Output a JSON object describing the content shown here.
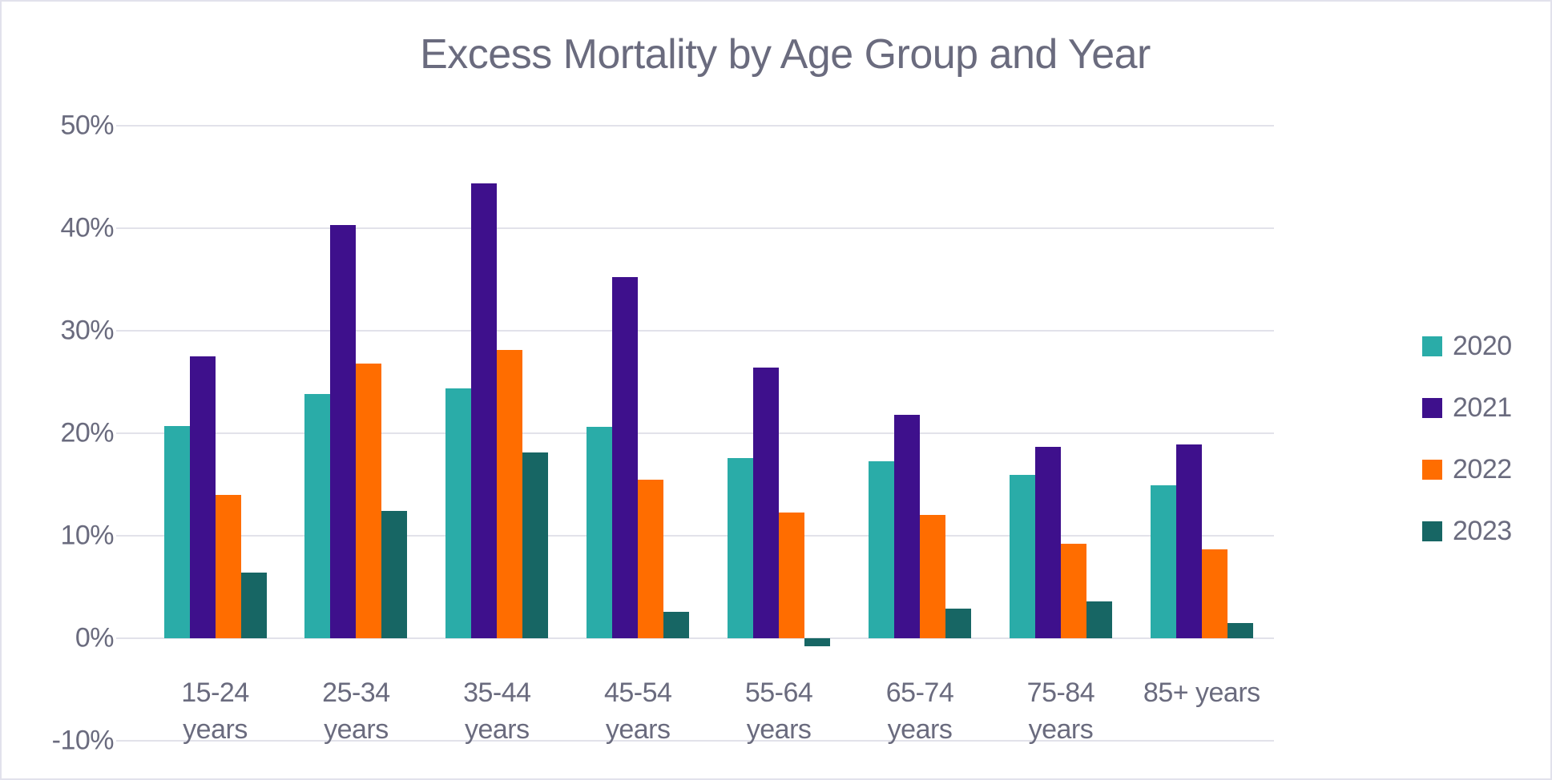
{
  "title": "Excess Mortality by Age Group and Year",
  "colors": {
    "background": "#ffffff",
    "border": "#e2e2ec",
    "gridline": "#e2e2ea",
    "text": "#6a6b7e"
  },
  "chart_data": {
    "type": "bar",
    "title": "Excess Mortality by Age Group and Year",
    "xlabel": "",
    "ylabel": "",
    "ylim": [
      -10,
      50
    ],
    "grid": true,
    "legend_position": "right",
    "yticks": [
      {
        "value": 50,
        "label": "50%"
      },
      {
        "value": 40,
        "label": "40%"
      },
      {
        "value": 30,
        "label": "30%"
      },
      {
        "value": 20,
        "label": "20%"
      },
      {
        "value": 10,
        "label": "10%"
      },
      {
        "value": 0,
        "label": "0%"
      },
      {
        "value": -10,
        "label": "-10%"
      }
    ],
    "categories": [
      {
        "label": "15-24 years",
        "lines": [
          "15-24",
          "years"
        ]
      },
      {
        "label": "25-34 years",
        "lines": [
          "25-34",
          "years"
        ]
      },
      {
        "label": "35-44 years",
        "lines": [
          "35-44",
          "years"
        ]
      },
      {
        "label": "45-54 years",
        "lines": [
          "45-54",
          "years"
        ]
      },
      {
        "label": "55-64 years",
        "lines": [
          "55-64",
          "years"
        ]
      },
      {
        "label": "65-74 years",
        "lines": [
          "65-74",
          "years"
        ]
      },
      {
        "label": "75-84 years",
        "lines": [
          "75-84",
          "years"
        ]
      },
      {
        "label": "85+ years",
        "lines": [
          "85+ years"
        ]
      }
    ],
    "series": [
      {
        "name": "2020",
        "color": "#2AACA8",
        "values": [
          20.7,
          23.8,
          24.4,
          20.6,
          17.6,
          17.3,
          15.9,
          14.9
        ]
      },
      {
        "name": "2021",
        "color": "#3E108C",
        "values": [
          27.5,
          40.3,
          44.4,
          35.2,
          26.4,
          21.8,
          18.7,
          18.9
        ]
      },
      {
        "name": "2022",
        "color": "#FF6D00",
        "values": [
          14.0,
          26.8,
          28.1,
          15.5,
          12.3,
          12.0,
          9.2,
          8.7
        ]
      },
      {
        "name": "2023",
        "color": "#176664",
        "values": [
          6.4,
          12.4,
          18.1,
          2.6,
          -0.8,
          2.9,
          3.6,
          1.5
        ]
      }
    ]
  }
}
